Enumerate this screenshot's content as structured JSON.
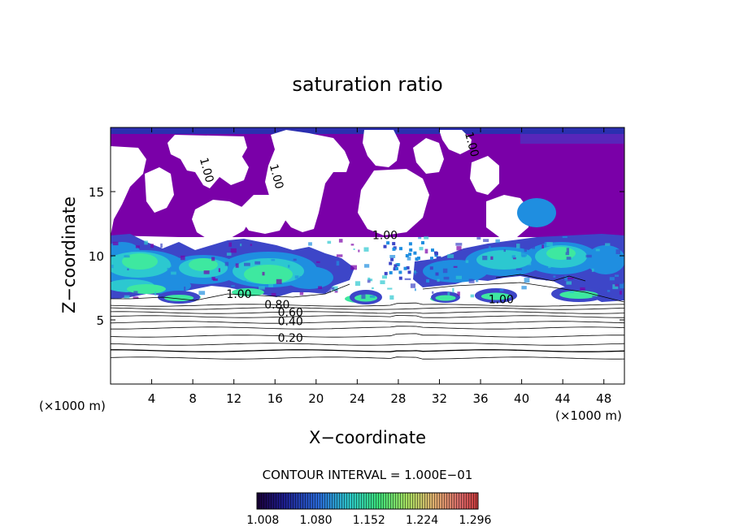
{
  "chart_data": {
    "type": "heatmap",
    "title": "saturation ratio",
    "xlabel": "X−coordinate",
    "ylabel": "Z−coordinate",
    "x_unit_left": "(×1000 m)",
    "x_unit_right": "(×1000 m)",
    "xlim": [
      0,
      50
    ],
    "ylim": [
      0,
      20
    ],
    "x_ticks": [
      4,
      8,
      12,
      16,
      20,
      24,
      28,
      32,
      36,
      40,
      44,
      48
    ],
    "y_ticks": [
      5,
      10,
      15
    ],
    "grid": false,
    "contour_interval_text": "CONTOUR INTERVAL = 1.000E−01",
    "contour_levels": [
      0.1,
      0.2,
      0.3,
      0.4,
      0.5,
      0.6,
      0.7,
      0.8,
      0.9,
      1.0
    ],
    "contour_labels": [
      {
        "text": "0.20",
        "x": 17.5,
        "y": 3.3
      },
      {
        "text": "0.40",
        "x": 17.5,
        "y": 4.6
      },
      {
        "text": "0.60",
        "x": 17.5,
        "y": 5.3
      },
      {
        "text": "0.80",
        "x": 16.2,
        "y": 5.9
      },
      {
        "text": "1.00",
        "x": 12.5,
        "y": 6.7
      },
      {
        "text": "1.00",
        "x": 38.0,
        "y": 6.3
      },
      {
        "text": "1.00",
        "x": 9.0,
        "y": 16.6
      },
      {
        "text": "1.00",
        "x": 15.8,
        "y": 16.1
      },
      {
        "text": "1.00",
        "x": 26.7,
        "y": 11.3
      },
      {
        "text": "1.00",
        "x": 34.8,
        "y": 18.6
      }
    ],
    "colorbar": {
      "ticks": [
        "1.008",
        "1.080",
        "1.152",
        "1.224",
        "1.296"
      ],
      "range": [
        1.0,
        1.3
      ]
    },
    "colors": {
      "subsaturated_region": "#7a00a8",
      "level_1": "#3d46c8",
      "level_2": "#1f8ee0",
      "level_3": "#2cc8d0",
      "level_4": "#3ee8a0",
      "top_band": "#2b2fb0"
    }
  }
}
